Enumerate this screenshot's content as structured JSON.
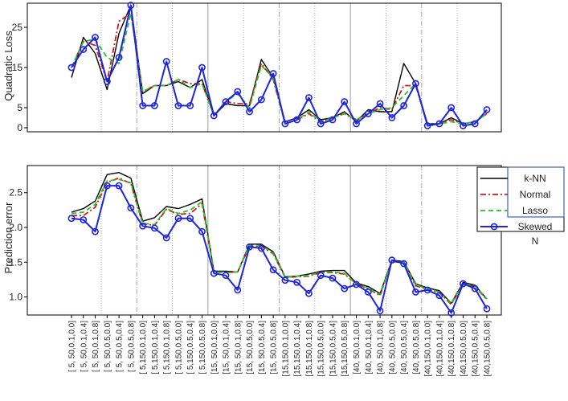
{
  "colors": {
    "knn": "#000000",
    "normal": "#d11a1a",
    "lasso": "#22c32b",
    "skewed": "#1d24e0",
    "dotted_sep": "#a8a8a8",
    "dashdot_sep": "#a8a8a8",
    "solid_sep": "#9a9a9a",
    "legend_border": "#3f5fc0"
  },
  "chart_data": [
    {
      "type": "line",
      "title": "",
      "xlabel": "",
      "ylabel": "Quadratic Loss",
      "ylim": [
        -1,
        31
      ],
      "yticks": [
        0,
        5,
        15,
        25
      ],
      "legend": null,
      "series": [
        {
          "name": "k-NN",
          "style": "solid",
          "values": [
            12.5,
            22.5,
            18.5,
            9.5,
            23.5,
            30.5,
            8.5,
            10.5,
            10.5,
            11.5,
            10,
            12,
            3,
            6,
            5.5,
            5.5,
            17,
            12.5,
            1.5,
            2.5,
            4.5,
            2,
            2.5,
            4,
            1.5,
            4.5,
            4,
            4,
            16,
            11,
            1,
            1,
            2.5,
            1,
            1.5,
            3.5
          ]
        },
        {
          "name": "Normal",
          "style": "dashdot",
          "values": [
            15,
            21.5,
            20.5,
            11.5,
            26.5,
            28.5,
            9,
            10.5,
            10.5,
            12,
            11,
            11,
            3,
            6.5,
            6,
            6,
            16,
            12,
            1,
            2,
            3.5,
            1.5,
            2.5,
            3.5,
            2,
            3.5,
            5,
            4.5,
            10.5,
            10.5,
            1,
            1,
            2,
            1,
            1.5,
            3.5
          ]
        },
        {
          "name": "Lasso",
          "style": "dashed",
          "values": [
            15,
            21.5,
            22,
            17.5,
            16,
            28.5,
            9,
            10.5,
            10.5,
            12,
            10,
            11,
            3,
            6.5,
            8.5,
            5,
            15.5,
            12.5,
            1,
            2,
            4,
            1.5,
            2.5,
            3.5,
            2,
            3.5,
            4.5,
            5,
            8,
            11,
            1,
            1,
            1.5,
            1,
            1.5,
            3.5
          ]
        },
        {
          "name": "Skewed",
          "style": "solid-circles",
          "values": [
            15,
            19.5,
            22.5,
            11.5,
            17.5,
            30.5,
            5.5,
            5.5,
            16.5,
            5.5,
            5.5,
            15,
            3,
            6.5,
            9,
            4,
            7,
            13.5,
            1,
            2,
            7.5,
            1,
            2,
            6.5,
            1,
            3.5,
            6,
            2.5,
            5.5,
            11,
            0.5,
            1,
            5,
            0.5,
            1,
            4.5
          ]
        }
      ]
    },
    {
      "type": "line",
      "title": "",
      "xlabel": "",
      "ylabel": "Prediction error",
      "ylim": [
        0.74,
        2.89
      ],
      "yticks": [
        1.0,
        1.5,
        2.0,
        2.5
      ],
      "legend": {
        "placement": "top-right",
        "entries": [
          "k-NN",
          "Normal",
          "Lasso",
          "Skewed"
        ],
        "overlap_text": "N"
      },
      "categories": [
        "[ 5, 50,0.1,0.0]",
        "[ 5, 50,0.1,0.4]",
        "[ 5, 50,0.1,0.8]",
        "[ 5, 50,0.5,0.0]",
        "[ 5, 50,0.5,0.4]",
        "[ 5, 50,0.5,0.8]",
        "[ 5,150,0.1,0.0]",
        "[ 5,150,0.1,0.4]",
        "[ 5,150,0.1,0.8]",
        "[ 5,150,0.5,0.0]",
        "[ 5,150,0.5,0.4]",
        "[ 5,150,0.5,0.8]",
        "[15, 50,0.1,0.0]",
        "[15, 50,0.1,0.4]",
        "[15, 50,0.1,0.8]",
        "[15, 50,0.5,0.0]",
        "[15, 50,0.5,0.4]",
        "[15, 50,0.5,0.8]",
        "[15,150,0.1,0.0]",
        "[15,150,0.1,0.4]",
        "[15,150,0.1,0.8]",
        "[15,150,0.5,0.0]",
        "[15,150,0.5,0.4]",
        "[15,150,0.5,0.8]",
        "[40, 50,0.1,0.0]",
        "[40, 50,0.1,0.4]",
        "[40, 50,0.1,0.8]",
        "[40, 50,0.5,0.0]",
        "[40, 50,0.5,0.4]",
        "[40, 50,0.5,0.8]",
        "[40,150,0.1,0.0]",
        "[40,150,0.1,0.4]",
        "[40,150,0.1,0.8]",
        "[40,150,0.5,0.0]",
        "[40,150,0.5,0.4]",
        "[40,150,0.5,0.8]"
      ],
      "series": [
        {
          "name": "k-NN",
          "style": "solid",
          "values": [
            2.22,
            2.27,
            2.38,
            2.76,
            2.79,
            2.71,
            2.09,
            2.14,
            2.3,
            2.27,
            2.33,
            2.41,
            1.37,
            1.37,
            1.36,
            1.76,
            1.76,
            1.65,
            1.29,
            1.3,
            1.33,
            1.37,
            1.38,
            1.38,
            1.2,
            1.15,
            1.05,
            1.53,
            1.51,
            1.19,
            1.13,
            1.09,
            0.91,
            1.21,
            1.17,
            0.97
          ]
        },
        {
          "name": "Normal",
          "style": "dashdot",
          "values": [
            2.17,
            2.17,
            2.29,
            2.65,
            2.71,
            2.63,
            2.05,
            2.03,
            2.26,
            2.19,
            2.2,
            2.34,
            1.36,
            1.35,
            1.36,
            1.73,
            1.73,
            1.62,
            1.28,
            1.29,
            1.3,
            1.35,
            1.35,
            1.33,
            1.19,
            1.12,
            1.02,
            1.51,
            1.49,
            1.16,
            1.11,
            1.06,
            0.89,
            1.19,
            1.15,
            0.96
          ]
        },
        {
          "name": "Lasso",
          "style": "dashed",
          "values": [
            2.2,
            2.22,
            2.33,
            2.67,
            2.69,
            2.64,
            2.06,
            2.04,
            2.27,
            2.2,
            2.25,
            2.37,
            1.36,
            1.35,
            1.36,
            1.74,
            1.74,
            1.63,
            1.28,
            1.3,
            1.31,
            1.35,
            1.36,
            1.34,
            1.19,
            1.13,
            1.03,
            1.52,
            1.5,
            1.17,
            1.12,
            1.07,
            0.9,
            1.19,
            1.16,
            0.97
          ]
        },
        {
          "name": "Skewed",
          "style": "solid-circles",
          "values": [
            2.13,
            2.11,
            1.94,
            2.6,
            2.6,
            2.28,
            2.02,
            1.99,
            1.85,
            2.13,
            2.13,
            1.94,
            1.34,
            1.31,
            1.1,
            1.72,
            1.7,
            1.39,
            1.24,
            1.21,
            1.05,
            1.31,
            1.27,
            1.12,
            1.18,
            1.07,
            0.8,
            1.53,
            1.48,
            1.07,
            1.1,
            1.02,
            0.77,
            1.19,
            1.12,
            0.83
          ]
        }
      ]
    }
  ]
}
